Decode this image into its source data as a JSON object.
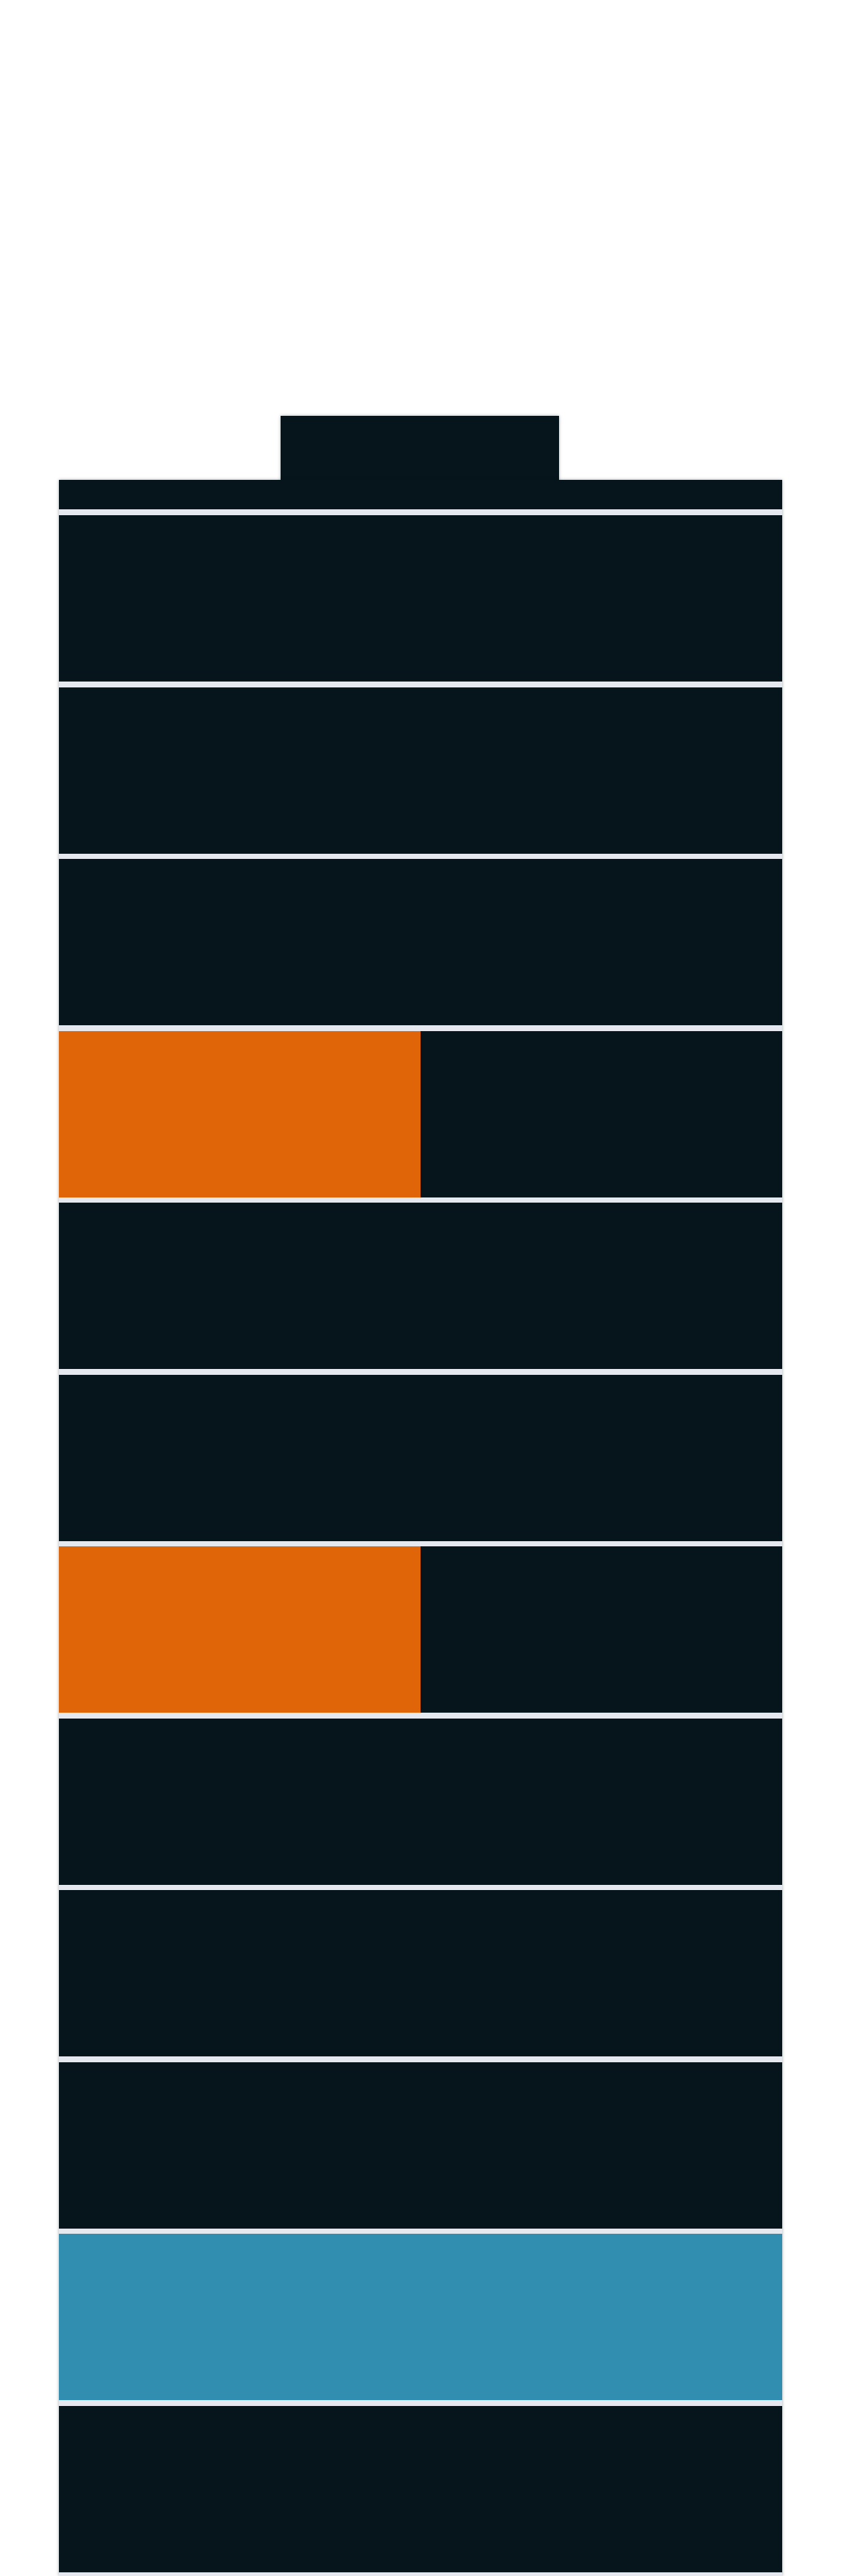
{
  "battery": {
    "colors": {
      "body": "#05151b",
      "separator": "#e6e8f0",
      "background": "#ffffff"
    },
    "cells": [
      {
        "fill_fraction": 0.0,
        "color": "#05151b"
      },
      {
        "fill_fraction": 0.0,
        "color": "#05151b"
      },
      {
        "fill_fraction": 0.0,
        "color": "#05151b"
      },
      {
        "fill_fraction": 0.5,
        "color": "#e06408"
      },
      {
        "fill_fraction": 0.0,
        "color": "#05151b"
      },
      {
        "fill_fraction": 0.0,
        "color": "#05151b"
      },
      {
        "fill_fraction": 0.5,
        "color": "#e06408"
      },
      {
        "fill_fraction": 0.0,
        "color": "#05151b"
      },
      {
        "fill_fraction": 0.0,
        "color": "#05151b"
      },
      {
        "fill_fraction": 0.0,
        "color": "#05151b"
      },
      {
        "fill_fraction": 1.0,
        "color": "#318eb1"
      },
      {
        "fill_fraction": 0.0,
        "color": "#05151b"
      }
    ]
  }
}
